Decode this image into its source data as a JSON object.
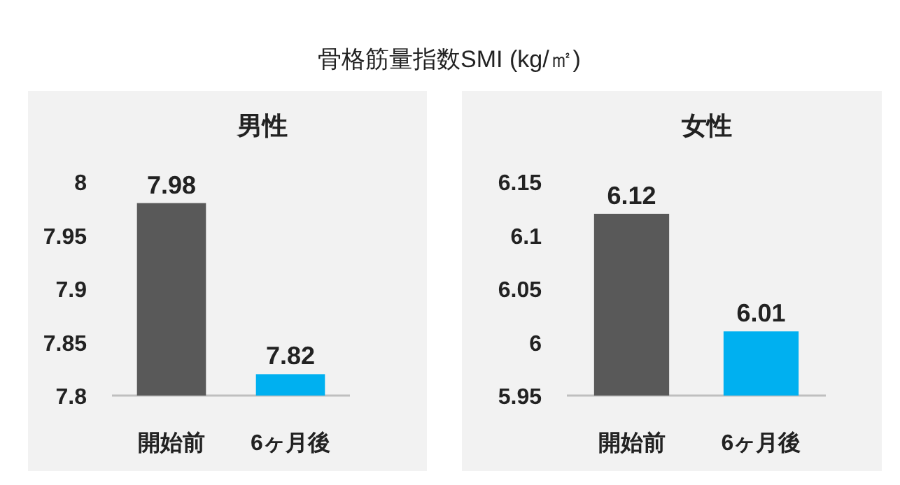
{
  "chart_data": [
    {
      "type": "bar",
      "title": "男性",
      "annotations": [
        "骨格筋量指数SMI (kg/㎡)"
      ],
      "categories": [
        "開始前",
        "6ヶ月後"
      ],
      "values": [
        7.98,
        7.82
      ],
      "colors": [
        "#595959",
        "#00b0f0"
      ],
      "ylim": [
        7.8,
        8
      ],
      "yticks": [
        7.8,
        7.85,
        7.9,
        7.95,
        8
      ],
      "data_labels": true
    },
    {
      "type": "bar",
      "title": "女性",
      "categories": [
        "開始前",
        "6ヶ月後"
      ],
      "values": [
        6.12,
        6.01
      ],
      "colors": [
        "#595959",
        "#00b0f0"
      ],
      "ylim": [
        5.95,
        6.15
      ],
      "yticks": [
        5.95,
        6,
        6.05,
        6.1,
        6.15
      ],
      "data_labels": true
    }
  ]
}
